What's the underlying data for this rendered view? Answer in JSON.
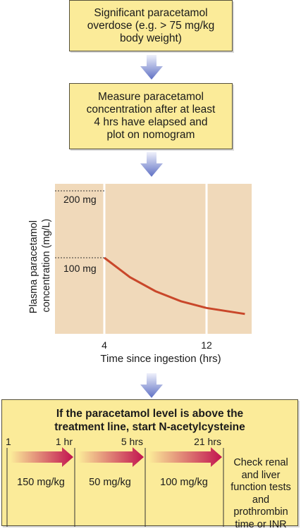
{
  "flow": {
    "step1": "Significant paracetamol\noverdose (e.g. > 75 mg/kg\nbody weight)",
    "step2": "Measure paracetamol\nconcentration after at least\n4 hrs have elapsed and\nplot on nomogram"
  },
  "chart_data": {
    "type": "line",
    "ylabel": "Plasma paracetamol\nconcentration (mg/L)",
    "xlabel": "Time since ingestion (hrs)",
    "x_ticks": [
      "4",
      "12"
    ],
    "y_reference_labels": [
      "200 mg",
      "100 mg"
    ],
    "series": [
      {
        "values": [
          [
            4,
            100
          ],
          [
            6,
            71
          ],
          [
            8,
            50
          ],
          [
            10,
            35
          ],
          [
            12,
            25
          ],
          [
            15,
            16
          ]
        ]
      }
    ],
    "colors": {
      "plot_bg": "#f0d9ba",
      "line": "#c9472a"
    }
  },
  "treatment": {
    "title": "If the paracetamol level is above the\ntreatment line, start N-acetylcysteine",
    "time_labels": [
      "1",
      "1 hr",
      "5 hrs",
      "21 hrs"
    ],
    "doses": [
      "150 mg/kg",
      "50 mg/kg",
      "100 mg/kg"
    ],
    "final_step": "Check renal\nand liver\nfunction tests\nand\nprothrombin\ntime or INR"
  },
  "colors": {
    "box_fill": "#fbeb99",
    "arrow_blue": "#6f7fc9",
    "arrow_magenta": "#c2134f"
  }
}
